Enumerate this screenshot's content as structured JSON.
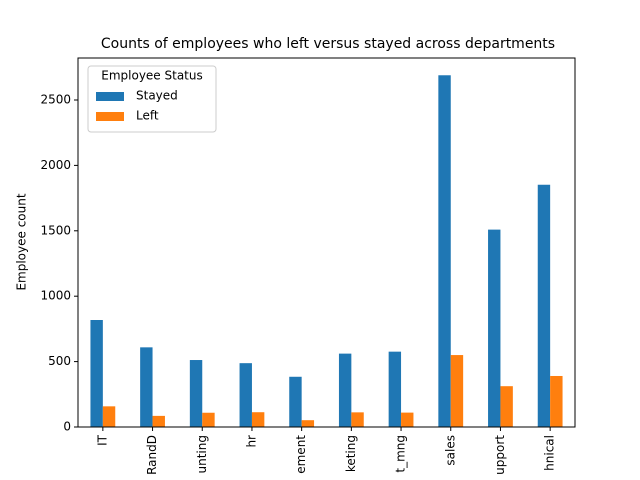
{
  "chart_data": {
    "type": "bar",
    "title": "Counts of employees who left versus stayed across departments",
    "ylabel": "Employee count",
    "categories": [
      "IT",
      "RandD",
      "unting",
      "hr",
      "ement",
      "keting",
      "t_mng",
      "sales",
      "upport",
      "hnical"
    ],
    "series": [
      {
        "name": "Stayed",
        "color": "#1f77b4",
        "values": [
          818,
          609,
          512,
          488,
          384,
          561,
          576,
          2689,
          1509,
          1852
        ]
      },
      {
        "name": "Left",
        "color": "#ff7f0e",
        "values": [
          158,
          85,
          109,
          113,
          52,
          112,
          110,
          550,
          312,
          390
        ]
      }
    ],
    "legend_title": "Employee Status",
    "legend": "upper left",
    "ylim": [
      0,
      2821
    ],
    "yticks": [
      0,
      500,
      1000,
      1500,
      2000,
      2500
    ],
    "grid": false
  }
}
